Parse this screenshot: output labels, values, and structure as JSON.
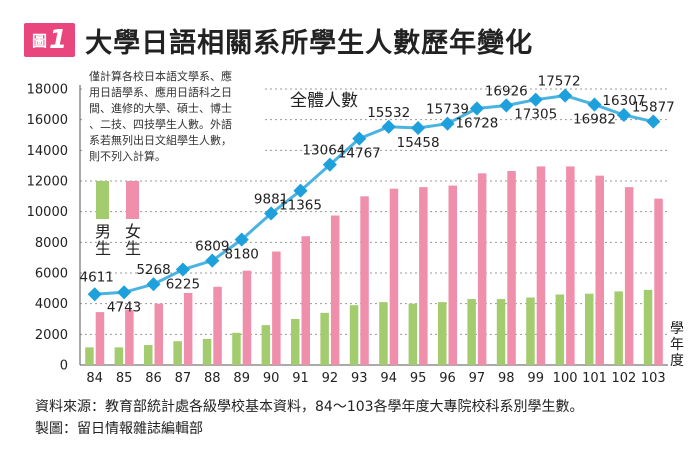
{
  "header": {
    "figure_word": "圖",
    "figure_number": "1",
    "title": "大學日語相關系所學生人數歷年變化"
  },
  "note": {
    "lines": [
      "僅計算各校日本語文學系、應",
      "用日語學系、應用日語科之日",
      "間、進修的大學、碩士、博士",
      "、二技、四技學生人數。外語",
      "系若無列出日文組學生人數，",
      "則不列入計算。"
    ]
  },
  "legend": {
    "male": "男生",
    "female": "女生",
    "total": "全體人數"
  },
  "x_axis_unit": "學年度",
  "source": {
    "line1": "資料來源：教育部統計處各級學校基本資料，84～103各學年度大專院校科系別學生數。",
    "line2": "製圖：留日情報雜誌編輯部"
  },
  "colors": {
    "male": "#a3cc6f",
    "female": "#ef8fab",
    "total_line": "#4ab3e0",
    "total_marker": "#1ea0dc",
    "badge": "#e8467c",
    "grid": "#9a9a9a"
  },
  "chart_data": {
    "type": "bar",
    "categories": [
      "84",
      "85",
      "86",
      "87",
      "88",
      "89",
      "90",
      "91",
      "92",
      "93",
      "94",
      "95",
      "96",
      "97",
      "98",
      "99",
      "100",
      "101",
      "102",
      "103"
    ],
    "ylim": [
      0,
      18000
    ],
    "yticks": [
      0,
      2000,
      4000,
      6000,
      8000,
      10000,
      12000,
      14000,
      16000,
      18000
    ],
    "grid": true,
    "series": [
      {
        "name": "男生",
        "type": "bar",
        "values": [
          1150,
          1150,
          1300,
          1550,
          1700,
          2100,
          2600,
          3000,
          3400,
          3900,
          4100,
          4000,
          4100,
          4300,
          4300,
          4400,
          4600,
          4650,
          4800,
          4900
        ]
      },
      {
        "name": "女生",
        "type": "bar",
        "values": [
          3450,
          3600,
          4000,
          4700,
          5100,
          6150,
          7400,
          8400,
          9750,
          11000,
          11500,
          11600,
          11700,
          12500,
          12650,
          12950,
          12950,
          12350,
          11600,
          10850
        ]
      },
      {
        "name": "全體人數",
        "type": "line",
        "values": [
          4611,
          4743,
          5268,
          6225,
          6809,
          8180,
          9881,
          11365,
          13064,
          14767,
          15532,
          15458,
          15739,
          16728,
          16926,
          17305,
          17572,
          16982,
          16307,
          15877
        ]
      }
    ]
  }
}
